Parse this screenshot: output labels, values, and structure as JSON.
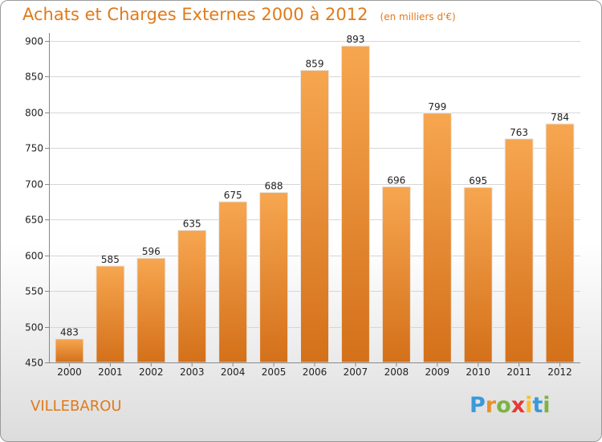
{
  "chart_data": {
    "type": "bar",
    "title": "Achats et Charges Externes 2000 à 2012",
    "subtitle": "(en milliers d'€)",
    "categories": [
      "2000",
      "2001",
      "2002",
      "2003",
      "2004",
      "2005",
      "2006",
      "2007",
      "2008",
      "2009",
      "2010",
      "2011",
      "2012"
    ],
    "values": [
      483,
      585,
      596,
      635,
      675,
      688,
      859,
      893,
      696,
      799,
      695,
      763,
      784
    ],
    "ylim": [
      450,
      900
    ],
    "yticks": [
      450,
      500,
      550,
      600,
      650,
      700,
      750,
      800,
      850,
      900
    ],
    "grid": true,
    "legend": "none",
    "bar_color_top": "#f7a650",
    "bar_color_bottom": "#d4701a",
    "axis_color": "#888888"
  },
  "footer": {
    "place": "VILLEBAROU",
    "brand": "Proxiti",
    "brand_letters": [
      "P",
      "r",
      "o",
      "x",
      "i",
      "t",
      "i"
    ],
    "brand_colors": [
      "#3a9ad9",
      "#e8912c",
      "#7cb342",
      "#e53935",
      "#fbc02d",
      "#3a9ad9",
      "#7cb342"
    ]
  },
  "colors": {
    "accent": "#e07a1a"
  }
}
